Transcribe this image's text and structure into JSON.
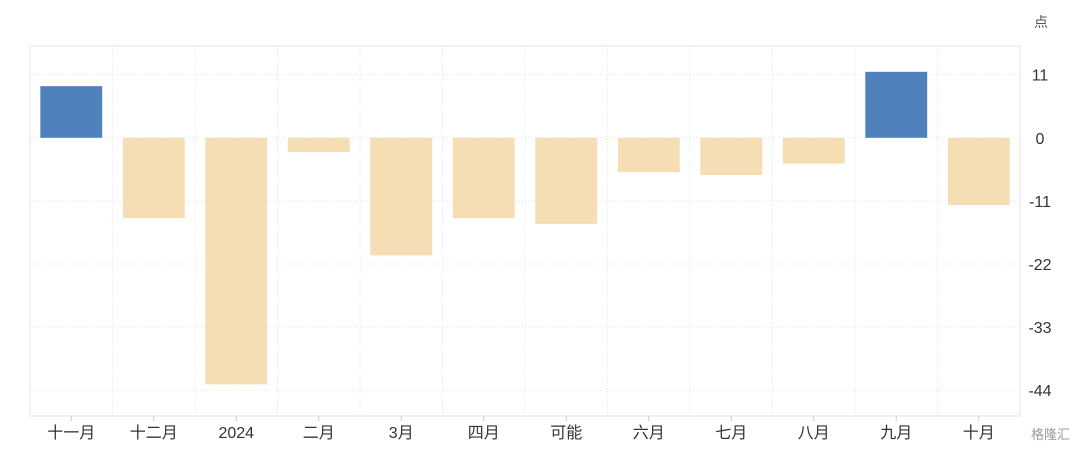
{
  "chart_data": {
    "type": "bar",
    "unit": "点",
    "categories": [
      "十一月",
      "十二月",
      "2024",
      "二月",
      "3月",
      "四月",
      "可能",
      "六月",
      "七月",
      "八月",
      "九月",
      "十月"
    ],
    "values": [
      9,
      -14,
      -43,
      -2.5,
      -20.5,
      -14,
      -15,
      -6,
      -6.5,
      -4.5,
      11.5,
      -11.7
    ],
    "y_ticks": [
      11,
      0,
      -11,
      -22,
      -33,
      -44
    ],
    "y_tick_labels": [
      "11",
      "0",
      "-11",
      "-22",
      "-33",
      "-44"
    ],
    "ylim": [
      -48.5,
      16
    ],
    "positive_color": "#4f81bd",
    "negative_color": "#f5deb3",
    "grid": true,
    "y_axis_side": "right"
  },
  "watermark": "格隆汇"
}
